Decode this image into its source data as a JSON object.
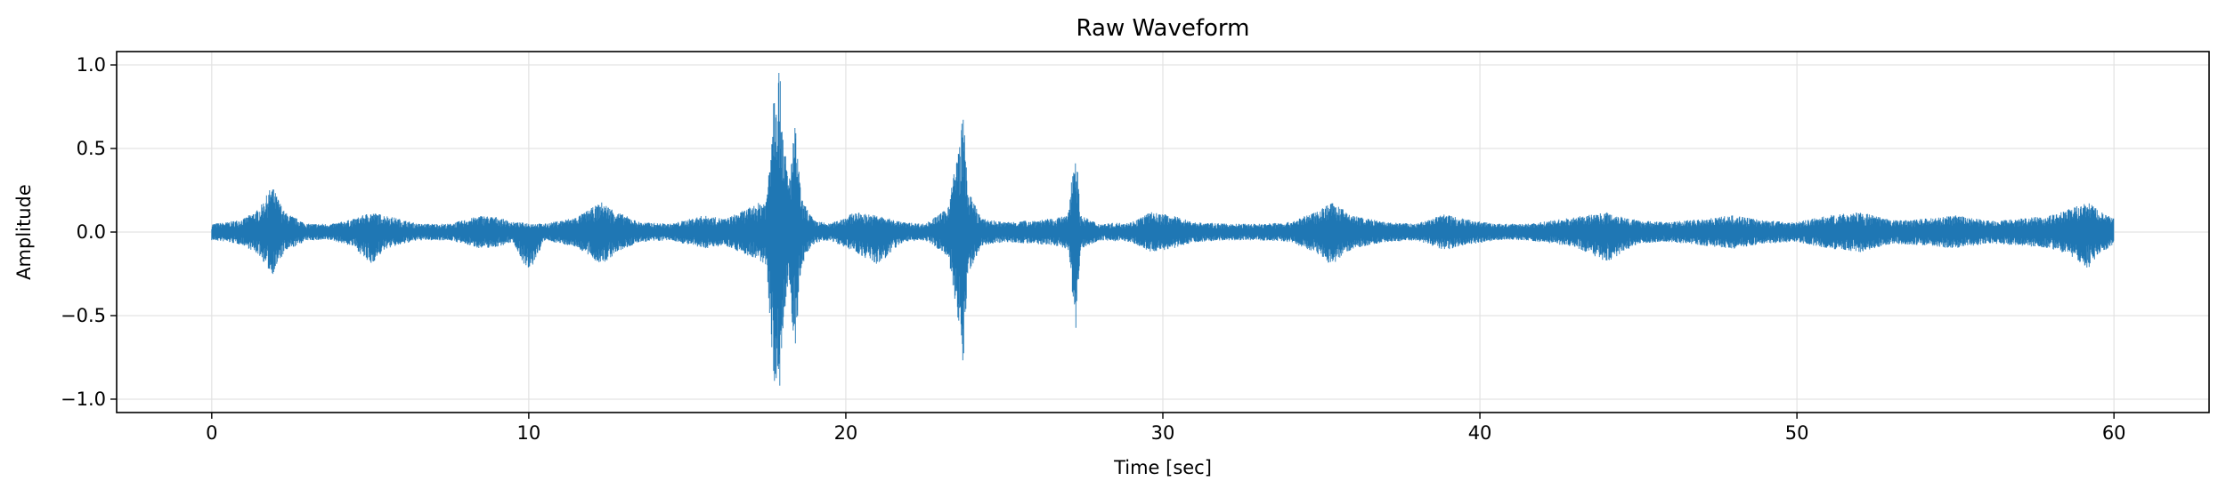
{
  "chart_data": {
    "type": "line",
    "title": "Raw Waveform",
    "xlabel": "Time [sec]",
    "ylabel": "Amplitude",
    "xlim": [
      -3,
      63
    ],
    "ylim": [
      -1.08,
      1.08
    ],
    "x_ticks": [
      0,
      10,
      20,
      30,
      40,
      50,
      60
    ],
    "x_tick_labels": [
      "0",
      "10",
      "20",
      "30",
      "40",
      "50",
      "60"
    ],
    "y_ticks": [
      1.0,
      0.5,
      0.0,
      -0.5,
      -1.0
    ],
    "y_tick_labels": [
      "1.0",
      "0.5",
      "0.0",
      "−0.5",
      "−1.0"
    ],
    "grid": true,
    "series": [
      {
        "color": "#1f77b4",
        "x_start": 0,
        "x_end": 60,
        "envelope_upper": [
          [
            0.0,
            0.05
          ],
          [
            0.5,
            0.06
          ],
          [
            1.0,
            0.08
          ],
          [
            1.5,
            0.14
          ],
          [
            1.9,
            0.28
          ],
          [
            2.3,
            0.12
          ],
          [
            3.0,
            0.05
          ],
          [
            3.8,
            0.05
          ],
          [
            4.5,
            0.08
          ],
          [
            5.0,
            0.12
          ],
          [
            5.5,
            0.1
          ],
          [
            6.5,
            0.05
          ],
          [
            7.5,
            0.05
          ],
          [
            8.5,
            0.1
          ],
          [
            9.0,
            0.09
          ],
          [
            9.5,
            0.06
          ],
          [
            10.5,
            0.05
          ],
          [
            11.5,
            0.09
          ],
          [
            12.3,
            0.18
          ],
          [
            12.8,
            0.12
          ],
          [
            13.5,
            0.06
          ],
          [
            14.5,
            0.05
          ],
          [
            15.5,
            0.1
          ],
          [
            16.2,
            0.08
          ],
          [
            17.0,
            0.15
          ],
          [
            17.5,
            0.2
          ],
          [
            17.75,
            0.95
          ],
          [
            17.9,
            1.0
          ],
          [
            18.05,
            0.55
          ],
          [
            18.2,
            0.3
          ],
          [
            18.4,
            0.65
          ],
          [
            18.6,
            0.2
          ],
          [
            19.0,
            0.07
          ],
          [
            19.5,
            0.05
          ],
          [
            20.3,
            0.12
          ],
          [
            21.0,
            0.1
          ],
          [
            21.8,
            0.06
          ],
          [
            22.5,
            0.05
          ],
          [
            23.2,
            0.14
          ],
          [
            23.6,
            0.55
          ],
          [
            23.7,
            0.73
          ],
          [
            23.85,
            0.25
          ],
          [
            24.3,
            0.08
          ],
          [
            25.0,
            0.06
          ],
          [
            25.8,
            0.07
          ],
          [
            26.5,
            0.08
          ],
          [
            27.0,
            0.1
          ],
          [
            27.25,
            0.55
          ],
          [
            27.4,
            0.1
          ],
          [
            28.0,
            0.05
          ],
          [
            29.0,
            0.06
          ],
          [
            29.6,
            0.12
          ],
          [
            30.3,
            0.1
          ],
          [
            31.0,
            0.06
          ],
          [
            32.0,
            0.05
          ],
          [
            33.0,
            0.05
          ],
          [
            34.0,
            0.06
          ],
          [
            34.8,
            0.12
          ],
          [
            35.3,
            0.18
          ],
          [
            36.0,
            0.1
          ],
          [
            37.0,
            0.06
          ],
          [
            38.0,
            0.05
          ],
          [
            38.9,
            0.11
          ],
          [
            39.5,
            0.08
          ],
          [
            40.5,
            0.05
          ],
          [
            41.5,
            0.05
          ],
          [
            42.3,
            0.07
          ],
          [
            43.0,
            0.09
          ],
          [
            44.0,
            0.12
          ],
          [
            45.0,
            0.07
          ],
          [
            46.0,
            0.06
          ],
          [
            47.0,
            0.08
          ],
          [
            48.0,
            0.1
          ],
          [
            49.0,
            0.07
          ],
          [
            50.0,
            0.06
          ],
          [
            51.0,
            0.1
          ],
          [
            52.0,
            0.12
          ],
          [
            53.0,
            0.07
          ],
          [
            54.0,
            0.08
          ],
          [
            55.0,
            0.1
          ],
          [
            56.0,
            0.07
          ],
          [
            57.0,
            0.08
          ],
          [
            58.0,
            0.1
          ],
          [
            58.6,
            0.14
          ],
          [
            59.2,
            0.18
          ],
          [
            59.6,
            0.12
          ],
          [
            60.0,
            0.08
          ]
        ],
        "envelope_lower": [
          [
            0.0,
            -0.05
          ],
          [
            0.5,
            -0.06
          ],
          [
            1.0,
            -0.08
          ],
          [
            1.5,
            -0.14
          ],
          [
            1.9,
            -0.26
          ],
          [
            2.3,
            -0.12
          ],
          [
            3.0,
            -0.05
          ],
          [
            3.8,
            -0.05
          ],
          [
            4.5,
            -0.09
          ],
          [
            5.0,
            -0.2
          ],
          [
            5.5,
            -0.1
          ],
          [
            6.5,
            -0.05
          ],
          [
            7.5,
            -0.05
          ],
          [
            8.5,
            -0.1
          ],
          [
            9.0,
            -0.09
          ],
          [
            9.5,
            -0.06
          ],
          [
            10.0,
            -0.25
          ],
          [
            10.5,
            -0.05
          ],
          [
            11.5,
            -0.09
          ],
          [
            12.3,
            -0.2
          ],
          [
            12.8,
            -0.12
          ],
          [
            13.5,
            -0.06
          ],
          [
            14.5,
            -0.05
          ],
          [
            15.5,
            -0.1
          ],
          [
            16.2,
            -0.08
          ],
          [
            17.0,
            -0.15
          ],
          [
            17.5,
            -0.2
          ],
          [
            17.75,
            -0.95
          ],
          [
            17.9,
            -1.0
          ],
          [
            18.05,
            -0.55
          ],
          [
            18.2,
            -0.3
          ],
          [
            18.4,
            -0.75
          ],
          [
            18.6,
            -0.2
          ],
          [
            19.0,
            -0.07
          ],
          [
            19.5,
            -0.05
          ],
          [
            20.3,
            -0.12
          ],
          [
            21.0,
            -0.2
          ],
          [
            21.8,
            -0.06
          ],
          [
            22.5,
            -0.05
          ],
          [
            23.2,
            -0.14
          ],
          [
            23.6,
            -0.6
          ],
          [
            23.7,
            -0.83
          ],
          [
            23.85,
            -0.25
          ],
          [
            24.3,
            -0.08
          ],
          [
            25.0,
            -0.06
          ],
          [
            25.8,
            -0.07
          ],
          [
            26.5,
            -0.08
          ],
          [
            27.0,
            -0.1
          ],
          [
            27.25,
            -0.63
          ],
          [
            27.4,
            -0.1
          ],
          [
            28.0,
            -0.05
          ],
          [
            29.0,
            -0.06
          ],
          [
            29.6,
            -0.12
          ],
          [
            30.3,
            -0.1
          ],
          [
            31.0,
            -0.06
          ],
          [
            32.0,
            -0.05
          ],
          [
            33.0,
            -0.05
          ],
          [
            34.0,
            -0.06
          ],
          [
            34.8,
            -0.12
          ],
          [
            35.3,
            -0.2
          ],
          [
            36.0,
            -0.1
          ],
          [
            37.0,
            -0.06
          ],
          [
            38.0,
            -0.05
          ],
          [
            38.9,
            -0.11
          ],
          [
            39.5,
            -0.08
          ],
          [
            40.5,
            -0.05
          ],
          [
            41.5,
            -0.05
          ],
          [
            42.3,
            -0.07
          ],
          [
            43.0,
            -0.09
          ],
          [
            44.0,
            -0.18
          ],
          [
            45.0,
            -0.07
          ],
          [
            46.0,
            -0.06
          ],
          [
            47.0,
            -0.08
          ],
          [
            48.0,
            -0.1
          ],
          [
            49.0,
            -0.07
          ],
          [
            50.0,
            -0.06
          ],
          [
            51.0,
            -0.1
          ],
          [
            52.0,
            -0.12
          ],
          [
            53.0,
            -0.07
          ],
          [
            54.0,
            -0.08
          ],
          [
            55.0,
            -0.1
          ],
          [
            56.0,
            -0.07
          ],
          [
            57.0,
            -0.08
          ],
          [
            58.0,
            -0.1
          ],
          [
            58.6,
            -0.14
          ],
          [
            59.2,
            -0.22
          ],
          [
            59.6,
            -0.12
          ],
          [
            60.0,
            -0.08
          ]
        ]
      }
    ]
  }
}
